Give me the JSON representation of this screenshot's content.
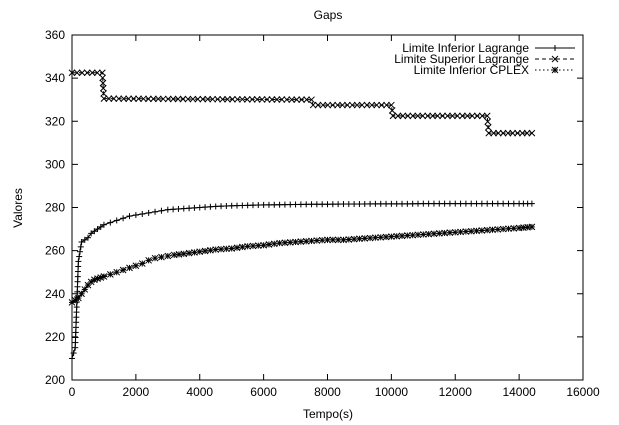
{
  "chart_data": {
    "type": "line",
    "title": "Gaps",
    "xlabel": "Tempo(s)",
    "ylabel": "Valores",
    "xlim": [
      0,
      16000
    ],
    "ylim": [
      200,
      360
    ],
    "xticks": [
      0,
      2000,
      4000,
      6000,
      8000,
      10000,
      12000,
      14000,
      16000
    ],
    "yticks": [
      200,
      220,
      240,
      260,
      280,
      300,
      320,
      340,
      360
    ],
    "grid": false,
    "legend_position": "top-right",
    "series": [
      {
        "name": "Limite Inferior Lagrange",
        "line_style": "solid",
        "marker": "plus",
        "x": [
          0,
          100,
          200,
          300,
          400,
          500,
          600,
          700,
          800,
          900,
          1000,
          1200,
          1400,
          1600,
          1800,
          2000,
          2200,
          2400,
          2600,
          2800,
          3000,
          3500,
          4000,
          4500,
          5000,
          5500,
          6000,
          6500,
          7000,
          7500,
          8000,
          8500,
          9000,
          9500,
          10000,
          10500,
          11000,
          11500,
          12000,
          12500,
          13000,
          13500,
          14000,
          14400
        ],
        "y": [
          210,
          215,
          255,
          264,
          265,
          266,
          268,
          269,
          270,
          271,
          272,
          273,
          274,
          275,
          276,
          276.5,
          277,
          277.5,
          278,
          278.5,
          279,
          279.5,
          280,
          280.5,
          280.8,
          281,
          281.2,
          281.3,
          281.4,
          281.5,
          281.5,
          281.6,
          281.6,
          281.7,
          281.7,
          281.7,
          281.8,
          281.8,
          281.8,
          281.8,
          281.8,
          281.8,
          281.8,
          281.8
        ]
      },
      {
        "name": "Limite Superior Lagrange",
        "line_style": "dashed",
        "marker": "x",
        "x": [
          0,
          950,
          1000,
          7500,
          7550,
          10000,
          10050,
          13000,
          13050,
          14400
        ],
        "y": [
          342.5,
          342.5,
          330.5,
          330,
          327.5,
          327.5,
          322.5,
          322.5,
          314.5,
          314.5
        ]
      },
      {
        "name": "Limite Inferior CPLEX",
        "line_style": "dotted",
        "marker": "star",
        "x": [
          0,
          100,
          200,
          300,
          400,
          500,
          600,
          700,
          800,
          900,
          1000,
          1200,
          1400,
          1600,
          1800,
          2000,
          2200,
          2400,
          2600,
          2800,
          3000,
          3200,
          3500,
          4000,
          4500,
          5000,
          5500,
          6000,
          6500,
          7000,
          7500,
          8000,
          8500,
          9000,
          9500,
          10000,
          10500,
          11000,
          11500,
          12000,
          12500,
          13000,
          13500,
          14000,
          14400
        ],
        "y": [
          236,
          237,
          238,
          240,
          242,
          244,
          245.5,
          246.5,
          247,
          247.5,
          248,
          249,
          250,
          251,
          252,
          253,
          254,
          255.5,
          256.5,
          257,
          257.5,
          258,
          258.5,
          259.5,
          260.5,
          261,
          262,
          262.5,
          263.5,
          264,
          264.5,
          265,
          265,
          265.5,
          266,
          266.5,
          267,
          267.5,
          268,
          268.5,
          269,
          269.5,
          270,
          270.5,
          271
        ]
      }
    ]
  }
}
